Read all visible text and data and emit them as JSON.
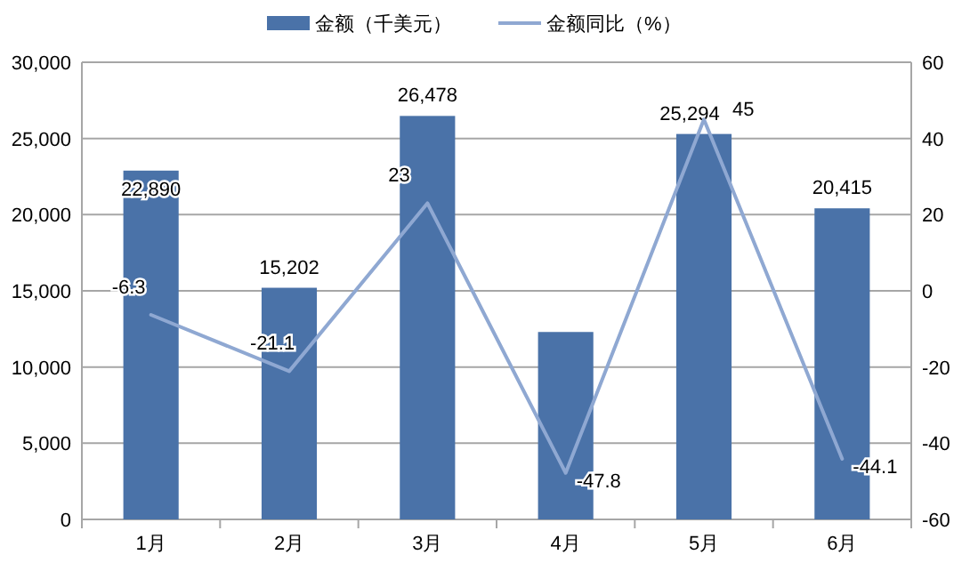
{
  "chart_data": {
    "type": "bar",
    "categories": [
      "1月",
      "2月",
      "3月",
      "4月",
      "5月",
      "6月"
    ],
    "series": [
      {
        "name": "金额（千美元）",
        "color": "#4a72a8",
        "values": [
          22890,
          15202,
          26478,
          12300,
          25294,
          20415
        ],
        "value_labels": [
          "22,890",
          "15,202",
          "26,478",
          null,
          "25,294",
          "20,415"
        ]
      },
      {
        "name": "金额同比（%）",
        "type": "line",
        "axis": "y2",
        "color": "#8fa8d2",
        "values": [
          -6.3,
          -21.1,
          23,
          -47.8,
          45,
          -44.1
        ],
        "value_labels": [
          "-6.3",
          "-21.1",
          "23",
          "-47.8",
          "45",
          "-44.1"
        ]
      }
    ],
    "ylim": [
      0,
      30000
    ],
    "yticks": [
      {
        "value": 0,
        "label": "0"
      },
      {
        "value": 5000,
        "label": "5,000"
      },
      {
        "value": 10000,
        "label": "10,000"
      },
      {
        "value": 15000,
        "label": "15,000"
      },
      {
        "value": 20000,
        "label": "20,000"
      },
      {
        "value": 25000,
        "label": "25,000"
      },
      {
        "value": 30000,
        "label": "30,000"
      }
    ],
    "y2lim": [
      -60,
      60
    ],
    "y2ticks": [
      -60,
      -40,
      -20,
      0,
      20,
      40,
      60
    ],
    "grid": "y",
    "legend": "top",
    "marker": "none",
    "line_style": "solid"
  }
}
